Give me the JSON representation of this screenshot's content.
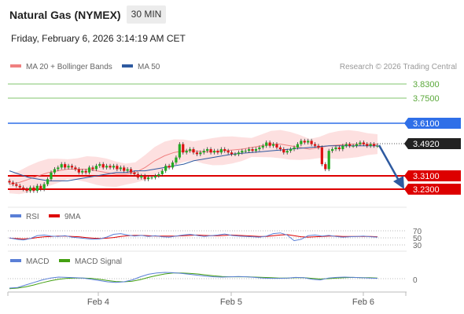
{
  "header": {
    "title": "Natural Gas (NYMEX)",
    "timeframe": "30 MIN",
    "timestamp": "Friday, February 6, 2026 3:14:19 AM CET"
  },
  "legend": {
    "main": [
      {
        "label": "MA 20 + Bollinger Bands",
        "color": "#f08080"
      },
      {
        "label": "MA 50",
        "color": "#2e5aa0"
      }
    ],
    "credit": "Research © 2026 Trading Central",
    "rsi": [
      {
        "label": "RSI",
        "color": "#5a7fd6"
      },
      {
        "label": "9MA",
        "color": "#dd0000"
      }
    ],
    "macd": [
      {
        "label": "MACD",
        "color": "#5a7fd6"
      },
      {
        "label": "MACD Signal",
        "color": "#44a012"
      }
    ]
  },
  "colors": {
    "resistance_green": "#82c46c",
    "pivot_blue": "#2f6fe8",
    "support_red": "#dd0000",
    "last_price_bg": "#222222",
    "arrow": "#2e5aa0",
    "candle_up": "#22aa22",
    "candle_down": "#dd1111",
    "bollinger_fill": "#fde0e0"
  },
  "price_levels": [
    {
      "value": "3.8300",
      "kind": "resistance"
    },
    {
      "value": "3.7500",
      "kind": "resistance"
    },
    {
      "value": "3.6100",
      "kind": "pivot"
    },
    {
      "value": "3.4920",
      "kind": "last"
    },
    {
      "value": "3.3100",
      "kind": "support"
    },
    {
      "value": "3.2300",
      "kind": "support"
    }
  ],
  "rsi_levels": [
    "70",
    "50",
    "30"
  ],
  "macd_levels": [
    "0"
  ],
  "x_axis": [
    "Feb 4",
    "Feb 5",
    "Feb 6"
  ],
  "series": {
    "price_closes": [
      3.27,
      3.26,
      3.25,
      3.24,
      3.23,
      3.22,
      3.24,
      3.22,
      3.25,
      3.23,
      3.26,
      3.29,
      3.33,
      3.35,
      3.36,
      3.38,
      3.36,
      3.37,
      3.36,
      3.35,
      3.33,
      3.34,
      3.33,
      3.36,
      3.35,
      3.37,
      3.38,
      3.36,
      3.37,
      3.36,
      3.37,
      3.35,
      3.36,
      3.34,
      3.35,
      3.33,
      3.32,
      3.3,
      3.31,
      3.29,
      3.3,
      3.3,
      3.31,
      3.32,
      3.34,
      3.37,
      3.36,
      3.39,
      3.42,
      3.5,
      3.45,
      3.46,
      3.47,
      3.45,
      3.44,
      3.45,
      3.46,
      3.47,
      3.45,
      3.46,
      3.45,
      3.47,
      3.46,
      3.45,
      3.44,
      3.44,
      3.45,
      3.46,
      3.46,
      3.47,
      3.46,
      3.47,
      3.48,
      3.49,
      3.51,
      3.49,
      3.5,
      3.48,
      3.47,
      3.45,
      3.46,
      3.47,
      3.48,
      3.5,
      3.52,
      3.51,
      3.52,
      3.5,
      3.49,
      3.48,
      3.38,
      3.35,
      3.46,
      3.47,
      3.48,
      3.47,
      3.49,
      3.5,
      3.49,
      3.49,
      3.5,
      3.51,
      3.5,
      3.49,
      3.5,
      3.49,
      3.49
    ],
    "ma50": [
      3.34,
      3.32,
      3.3,
      3.29,
      3.28,
      3.28,
      3.28,
      3.29,
      3.3,
      3.31,
      3.32,
      3.33,
      3.33,
      3.34,
      3.34,
      3.35,
      3.36,
      3.37,
      3.38,
      3.4,
      3.41,
      3.42,
      3.43,
      3.44,
      3.445,
      3.45,
      3.455,
      3.46,
      3.465,
      3.47,
      3.475,
      3.48,
      3.485,
      3.49,
      3.49,
      3.49,
      3.49,
      3.49,
      3.49
    ],
    "ma20": [
      3.26,
      3.27,
      3.29,
      3.31,
      3.33,
      3.34,
      3.35,
      3.35,
      3.35,
      3.34,
      3.33,
      3.32,
      3.32,
      3.33,
      3.36,
      3.4,
      3.43,
      3.45,
      3.46,
      3.46,
      3.455,
      3.455,
      3.46,
      3.465,
      3.47,
      3.48,
      3.49,
      3.5,
      3.5,
      3.49,
      3.48,
      3.47,
      3.48,
      3.49,
      3.495,
      3.5,
      3.5,
      3.5,
      3.5
    ],
    "rsi": [
      50,
      46,
      44,
      48,
      56,
      58,
      55,
      54,
      56,
      52,
      50,
      48,
      46,
      47,
      52,
      60,
      62,
      58,
      55,
      57,
      54,
      56,
      53,
      52,
      55,
      58,
      60,
      57,
      54,
      56,
      58,
      61,
      57,
      55,
      54,
      53,
      52,
      55,
      62,
      64,
      58,
      42,
      46,
      56,
      58,
      55,
      57,
      54,
      52,
      53,
      54,
      55,
      53,
      52
    ],
    "rsi_ma": [
      49,
      48,
      47,
      48,
      51,
      53,
      54,
      55,
      55,
      54,
      53,
      51,
      49,
      48,
      49,
      51,
      54,
      56,
      57,
      57,
      56,
      55,
      55,
      55,
      55,
      56,
      57,
      58,
      57,
      56,
      56,
      57,
      58,
      57,
      56,
      55,
      54,
      54,
      56,
      58,
      59,
      56,
      53,
      52,
      53,
      54,
      55,
      55,
      54,
      54,
      54,
      54,
      54,
      53
    ],
    "macd": [
      -0.03,
      -0.028,
      -0.02,
      -0.012,
      -0.004,
      0.002,
      0.005,
      0.004,
      0.003,
      0.002,
      -0.002,
      -0.006,
      -0.01,
      -0.012,
      -0.01,
      -0.004,
      0.006,
      0.014,
      0.018,
      0.02,
      0.019,
      0.017,
      0.014,
      0.011,
      0.008,
      0.006,
      0.005,
      0.006,
      0.007,
      0.006,
      0.004,
      0.002,
      0.001,
      0.001,
      0.002,
      0.004,
      0.003,
      -0.002,
      -0.004,
      0.002,
      0.004,
      0.005,
      0.004,
      0.003,
      0.002,
      0.001
    ],
    "macd_signal": [
      -0.032,
      -0.03,
      -0.026,
      -0.02,
      -0.013,
      -0.007,
      -0.002,
      0.001,
      0.002,
      0.002,
      0.001,
      -0.002,
      -0.006,
      -0.009,
      -0.01,
      -0.008,
      -0.003,
      0.004,
      0.01,
      0.015,
      0.018,
      0.018,
      0.017,
      0.015,
      0.012,
      0.009,
      0.007,
      0.006,
      0.006,
      0.006,
      0.005,
      0.004,
      0.003,
      0.002,
      0.002,
      0.003,
      0.003,
      0.001,
      -0.001,
      0.0,
      0.002,
      0.003,
      0.004,
      0.003,
      0.003,
      0.002
    ]
  }
}
